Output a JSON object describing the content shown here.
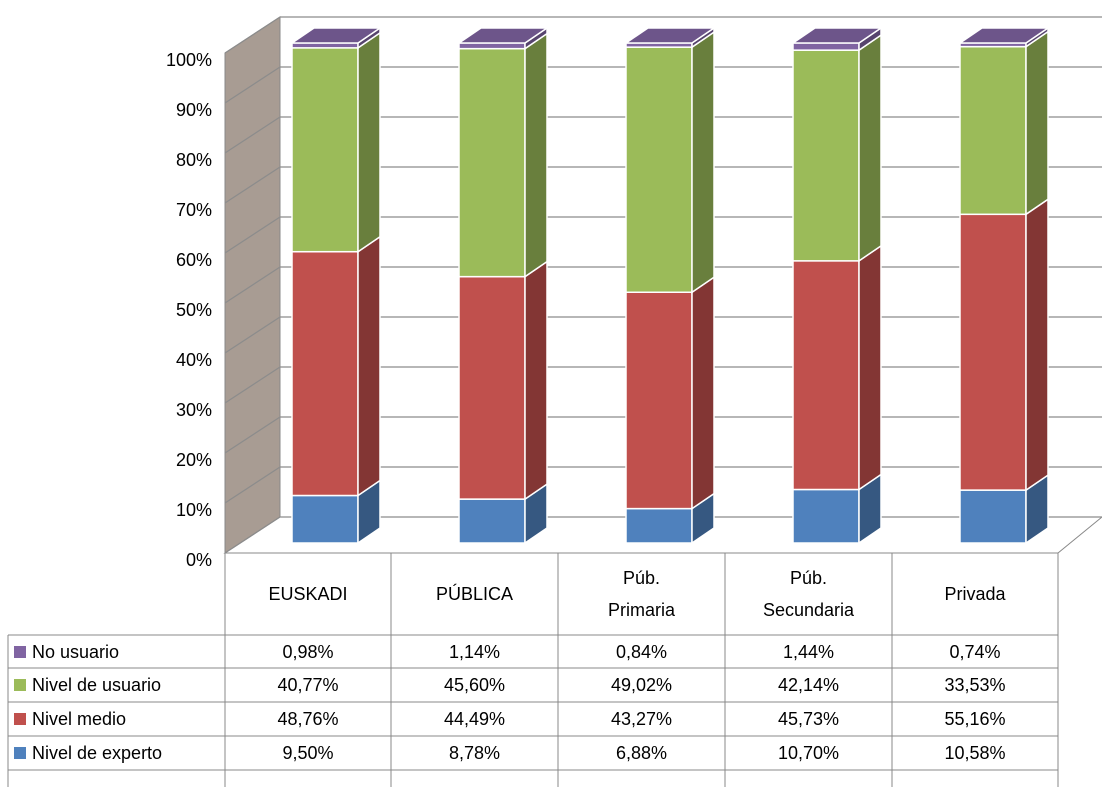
{
  "chart_data": {
    "type": "bar3d-stacked",
    "categories": [
      "EUSKADI",
      "PÚBLICA",
      "Púb. Primaria",
      "Púb. Secundaria",
      "Privada"
    ],
    "series": [
      {
        "name": "Nivel de experto",
        "color": "#4f81bd",
        "values": [
          9.5,
          8.78,
          6.88,
          10.7,
          10.58
        ],
        "value_labels": [
          "9,50%",
          "8,78%",
          "6,88%",
          "10,70%",
          "10,58%"
        ]
      },
      {
        "name": "Nivel medio",
        "color": "#c0504d",
        "values": [
          48.76,
          44.49,
          43.27,
          45.73,
          55.16
        ],
        "value_labels": [
          "48,76%",
          "44,49%",
          "43,27%",
          "45,73%",
          "55,16%"
        ]
      },
      {
        "name": "Nivel de usuario",
        "color": "#9bbb59",
        "values": [
          40.77,
          45.6,
          49.02,
          42.14,
          33.53
        ],
        "value_labels": [
          "40,77%",
          "45,60%",
          "49,02%",
          "42,14%",
          "33,53%"
        ]
      },
      {
        "name": "No usuario",
        "color": "#8064a2",
        "values": [
          0.98,
          1.14,
          0.84,
          1.44,
          0.74
        ],
        "value_labels": [
          "0,98%",
          "1,14%",
          "0,84%",
          "1,44%",
          "0,74%"
        ]
      }
    ],
    "ylim": [
      0,
      100
    ],
    "yticks": [
      {
        "value": 0,
        "label": "0%"
      },
      {
        "value": 10,
        "label": "10%"
      },
      {
        "value": 20,
        "label": "20%"
      },
      {
        "value": 30,
        "label": "30%"
      },
      {
        "value": 40,
        "label": "40%"
      },
      {
        "value": 50,
        "label": "50%"
      },
      {
        "value": 60,
        "label": "60%"
      },
      {
        "value": 70,
        "label": "70%"
      },
      {
        "value": 80,
        "label": "80%"
      },
      {
        "value": 90,
        "label": "90%"
      },
      {
        "value": 100,
        "label": "100%"
      }
    ],
    "grid": true
  }
}
